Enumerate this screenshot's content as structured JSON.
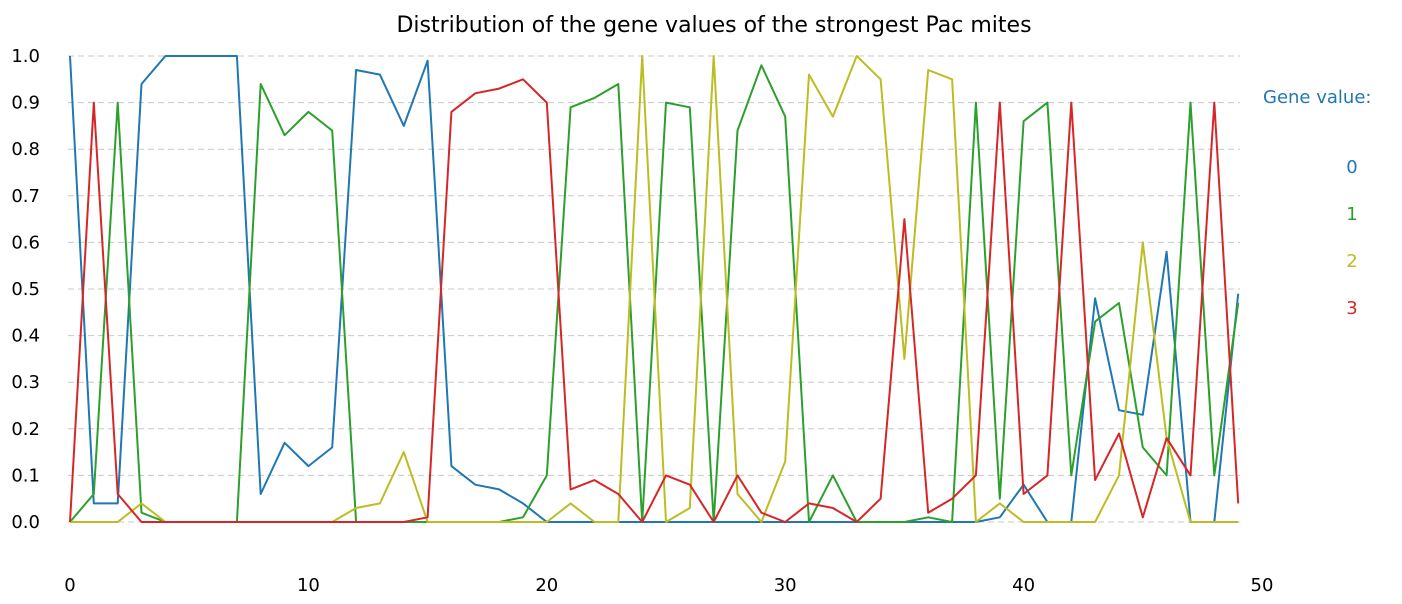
{
  "chart_data": {
    "type": "line",
    "title": "Distribution of the gene values of the strongest Pac mites",
    "xlabel": "",
    "ylabel": "",
    "xlim": [
      0,
      50
    ],
    "ylim": [
      0,
      1.0
    ],
    "x_ticks": [
      "0",
      "10",
      "20",
      "30",
      "40",
      "50"
    ],
    "y_ticks": [
      "0.0",
      "0.1",
      "0.2",
      "0.3",
      "0.4",
      "0.5",
      "0.6",
      "0.7",
      "0.8",
      "0.9",
      "1.0"
    ],
    "grid": "horizontal dashed",
    "legend": {
      "title": "Gene value:",
      "placement": "right",
      "entries": [
        "0",
        "1",
        "2",
        "3"
      ]
    },
    "colors": {
      "legend_title": "#1f77b4",
      "series": [
        "#1f77b4",
        "#2ca02c",
        "#bcbd22",
        "#d62728"
      ],
      "grid": "#c8c8c8",
      "text": "#000000"
    },
    "x": [
      0,
      1,
      2,
      3,
      4,
      5,
      6,
      7,
      8,
      9,
      10,
      11,
      12,
      13,
      14,
      15,
      16,
      17,
      18,
      19,
      20,
      21,
      22,
      23,
      24,
      25,
      26,
      27,
      28,
      29,
      30,
      31,
      32,
      33,
      34,
      35,
      36,
      37,
      38,
      39,
      40,
      41,
      42,
      43,
      44,
      45,
      46,
      47,
      48,
      49
    ],
    "series": [
      {
        "name": "0",
        "values": [
          1.0,
          0.04,
          0.04,
          0.94,
          1.0,
          1.0,
          1.0,
          1.0,
          0.06,
          0.17,
          0.12,
          0.16,
          0.97,
          0.96,
          0.85,
          0.99,
          0.12,
          0.08,
          0.07,
          0.04,
          0.0,
          0.0,
          0.0,
          0.0,
          0.0,
          0.0,
          0.0,
          0.0,
          0.0,
          0.0,
          0.0,
          0.0,
          0.0,
          0.0,
          0.0,
          0.0,
          0.0,
          0.0,
          0.0,
          0.01,
          0.08,
          0.0,
          0.0,
          0.48,
          0.24,
          0.23,
          0.58,
          0.0,
          0.0,
          0.49
        ]
      },
      {
        "name": "1",
        "values": [
          0.0,
          0.06,
          0.9,
          0.02,
          0.0,
          0.0,
          0.0,
          0.0,
          0.94,
          0.83,
          0.88,
          0.84,
          0.0,
          0.0,
          0.0,
          0.0,
          0.0,
          0.0,
          0.0,
          0.01,
          0.1,
          0.89,
          0.91,
          0.94,
          0.0,
          0.9,
          0.89,
          0.0,
          0.84,
          0.98,
          0.87,
          0.0,
          0.1,
          0.0,
          0.0,
          0.0,
          0.01,
          0.0,
          0.9,
          0.05,
          0.86,
          0.9,
          0.1,
          0.43,
          0.47,
          0.16,
          0.1,
          0.9,
          0.1,
          0.47
        ]
      },
      {
        "name": "2",
        "values": [
          0.0,
          0.0,
          0.0,
          0.04,
          0.0,
          0.0,
          0.0,
          0.0,
          0.0,
          0.0,
          0.0,
          0.0,
          0.03,
          0.04,
          0.15,
          0.0,
          0.0,
          0.0,
          0.0,
          0.0,
          0.0,
          0.04,
          0.0,
          0.0,
          1.0,
          0.0,
          0.03,
          1.0,
          0.06,
          0.0,
          0.13,
          0.96,
          0.87,
          1.0,
          0.95,
          0.35,
          0.97,
          0.95,
          0.0,
          0.04,
          0.0,
          0.0,
          0.0,
          0.0,
          0.1,
          0.6,
          0.18,
          0.0,
          0.0,
          0.0
        ]
      },
      {
        "name": "3",
        "values": [
          0.0,
          0.9,
          0.06,
          0.0,
          0.0,
          0.0,
          0.0,
          0.0,
          0.0,
          0.0,
          0.0,
          0.0,
          0.0,
          0.0,
          0.0,
          0.01,
          0.88,
          0.92,
          0.93,
          0.95,
          0.9,
          0.07,
          0.09,
          0.06,
          0.0,
          0.1,
          0.08,
          0.0,
          0.1,
          0.02,
          0.0,
          0.04,
          0.03,
          0.0,
          0.05,
          0.65,
          0.02,
          0.05,
          0.1,
          0.9,
          0.06,
          0.1,
          0.9,
          0.09,
          0.19,
          0.01,
          0.18,
          0.1,
          0.9,
          0.04
        ]
      }
    ]
  }
}
